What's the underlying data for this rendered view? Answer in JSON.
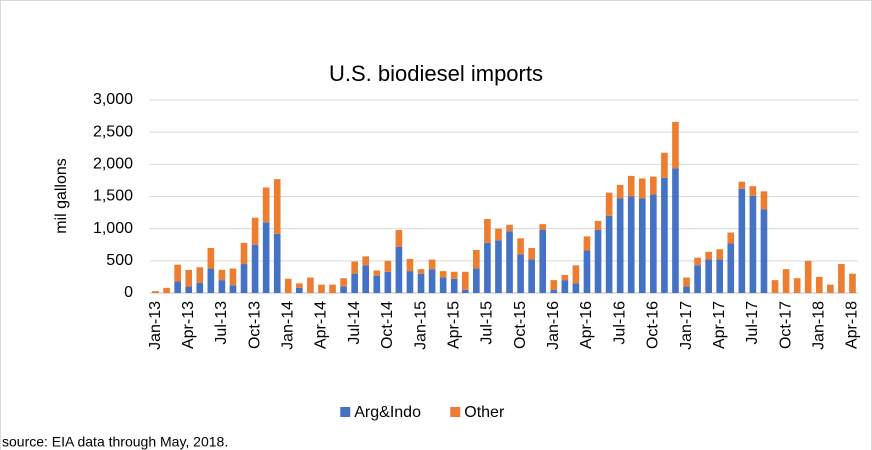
{
  "chart_data": {
    "type": "bar",
    "stacked": true,
    "title": "U.S. biodiesel imports",
    "y_label": "mil gallons",
    "source": "source: EIA data through May, 2018.",
    "categories": [
      "Jan-13",
      null,
      null,
      "Apr-13",
      null,
      null,
      "Jul-13",
      null,
      null,
      "Oct-13",
      null,
      null,
      "Jan-14",
      null,
      null,
      "Apr-14",
      null,
      null,
      "Jul-14",
      null,
      null,
      "Oct-14",
      null,
      null,
      "Jan-15",
      null,
      null,
      "Apr-15",
      null,
      null,
      "Jul-15",
      null,
      null,
      "Oct-15",
      null,
      null,
      "Jan-16",
      null,
      null,
      "Apr-16",
      null,
      null,
      "Jul-16",
      null,
      null,
      "Oct-16",
      null,
      null,
      "Jan-17",
      null,
      null,
      "Apr-17",
      null,
      null,
      "Jul-17",
      null,
      null,
      "Oct-17",
      null,
      null,
      "Jan-18",
      null,
      null,
      "Apr-18"
    ],
    "series": [
      {
        "name": "Arg&Indo",
        "color": "#4472c4",
        "values": [
          0,
          0,
          180,
          100,
          160,
          380,
          200,
          120,
          450,
          750,
          1100,
          920,
          0,
          80,
          0,
          0,
          0,
          100,
          300,
          430,
          270,
          330,
          720,
          340,
          300,
          370,
          240,
          220,
          50,
          380,
          780,
          820,
          960,
          600,
          520,
          980,
          50,
          200,
          150,
          660,
          980,
          1200,
          1470,
          1500,
          1470,
          1530,
          1790,
          1940,
          100,
          430,
          520,
          520,
          770,
          1620,
          1510,
          1300,
          0,
          0,
          0,
          0,
          0,
          0,
          0,
          0
        ]
      },
      {
        "name": "Other",
        "color": "#ed7d31",
        "values": [
          30,
          80,
          260,
          260,
          240,
          320,
          160,
          260,
          330,
          420,
          540,
          850,
          220,
          70,
          240,
          130,
          130,
          130,
          190,
          140,
          80,
          170,
          260,
          190,
          70,
          150,
          100,
          110,
          280,
          290,
          370,
          180,
          100,
          250,
          180,
          90,
          150,
          80,
          280,
          220,
          140,
          360,
          210,
          320,
          310,
          280,
          390,
          720,
          140,
          120,
          120,
          160,
          170,
          110,
          150,
          280,
          200,
          370,
          230,
          500,
          250,
          130,
          450,
          300
        ]
      }
    ],
    "ylim": [
      0,
      3000
    ],
    "yticks": [
      0,
      500,
      {
        "value": 1000,
        "label": "1,000"
      },
      {
        "value": 1500,
        "label": "1,500"
      },
      {
        "value": 2000,
        "label": "2,000"
      },
      {
        "value": 2500,
        "label": "2,500"
      },
      {
        "value": 3000,
        "label": "3,000"
      }
    ],
    "grid": true,
    "legend": "bottom"
  }
}
